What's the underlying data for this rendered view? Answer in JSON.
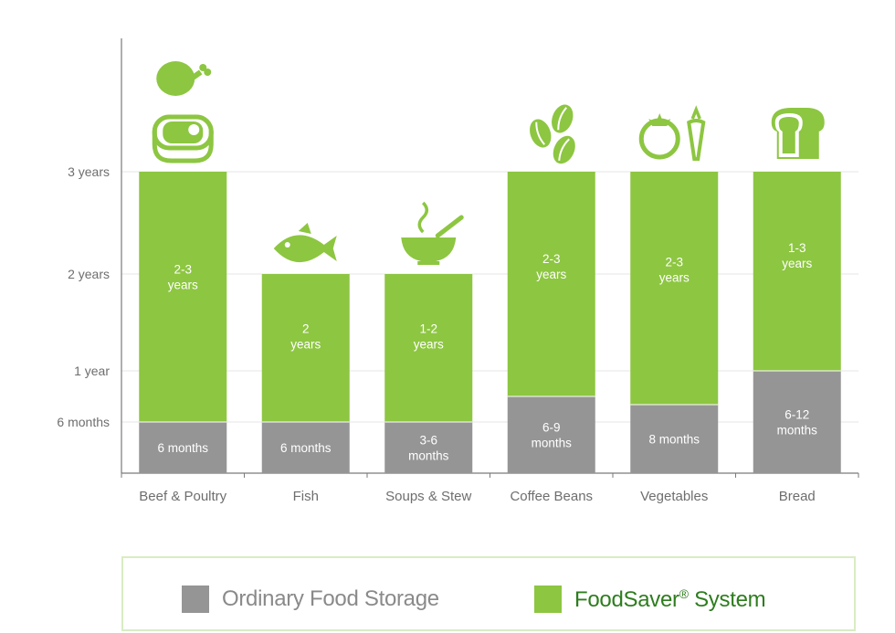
{
  "chart_data": {
    "type": "bar",
    "categories": [
      "Beef & Poultry",
      "Fish",
      "Soups & Stew",
      "Coffee Beans",
      "Vegetables",
      "Bread"
    ],
    "y_ticks": [
      {
        "label": "6 months",
        "value": 0.5
      },
      {
        "label": "1 year",
        "value": 1
      },
      {
        "label": "2 years",
        "value": 2
      },
      {
        "label": "3 years",
        "value": 3
      }
    ],
    "ylim": [
      0,
      3
    ],
    "series": [
      {
        "name": "Ordinary Food Storage",
        "color": "#959595",
        "values": [
          0.5,
          0.5,
          0.5,
          0.75,
          0.67,
          1.0
        ],
        "labels": [
          [
            "6 months"
          ],
          [
            "6 months"
          ],
          [
            "3-6",
            "months"
          ],
          [
            "6-9",
            "months"
          ],
          [
            "8 months"
          ],
          [
            "6-12",
            "months"
          ]
        ]
      },
      {
        "name": "FoodSaver® System",
        "color": "#8dc641",
        "values": [
          3,
          2,
          2,
          3,
          3,
          3
        ],
        "labels": [
          [
            "2-3",
            "years"
          ],
          [
            "2",
            "years"
          ],
          [
            "1-2",
            "years"
          ],
          [
            "2-3",
            "years"
          ],
          [
            "2-3",
            "years"
          ],
          [
            "1-3",
            "years"
          ]
        ]
      }
    ],
    "icons": [
      "chicken-and-steak-icon",
      "fish-icon",
      "soup-bowl-icon",
      "coffee-beans-icon",
      "tomato-carrot-icon",
      "bread-icon"
    ]
  },
  "legend": {
    "ordinary": {
      "label": "Ordinary Food Storage",
      "color": "#959595",
      "text_color": "#8a8a8a"
    },
    "foodsaver": {
      "label_main": "FoodSaver",
      "label_reg": "®",
      "label_rest": " System",
      "color": "#8dc641",
      "text_color": "#2e7d1e"
    }
  }
}
